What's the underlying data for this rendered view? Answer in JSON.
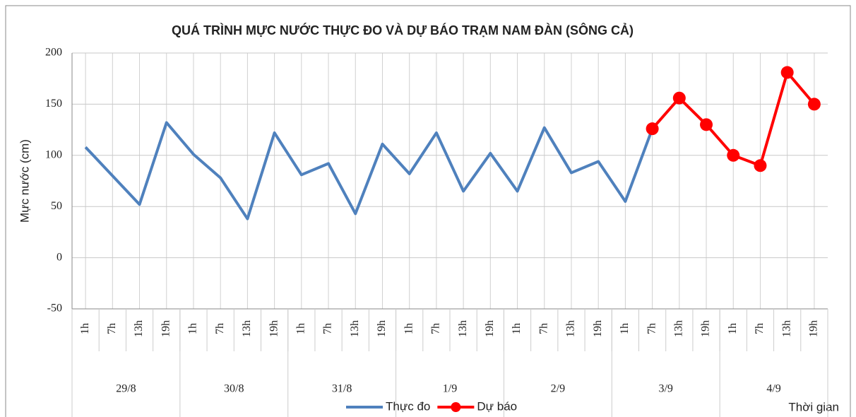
{
  "chart_data": {
    "type": "line",
    "title": "QUÁ TRÌNH MỰC NƯỚC THỰC ĐO VÀ DỰ BÁO TRẠM  NAM ĐÀN (SÔNG CẢ)",
    "y_label": "Mực nước (cm)",
    "x_label": "Thời gian",
    "categories": [
      "1h",
      "7h",
      "13h",
      "19h",
      "1h",
      "7h",
      "13h",
      "19h",
      "1h",
      "7h",
      "13h",
      "19h",
      "1h",
      "7h",
      "13h",
      "19h",
      "1h",
      "7h",
      "13h",
      "19h",
      "1h",
      "7h",
      "13h",
      "19h",
      "1h",
      "7h",
      "13h",
      "19h"
    ],
    "groups": [
      "29/8",
      "30/8",
      "31/8",
      "1/9",
      "2/9",
      "3/9",
      "4/9"
    ],
    "series": [
      {
        "name": "Thực đo",
        "color": "#4f81bd",
        "marker": false,
        "values": [
          108,
          80,
          52,
          132,
          101,
          78,
          38,
          122,
          81,
          92,
          43,
          111,
          82,
          122,
          65,
          102,
          65,
          127,
          83,
          94,
          55,
          126,
          null,
          null,
          null,
          null,
          null,
          null
        ]
      },
      {
        "name": "Dự báo",
        "color": "#ff0000",
        "marker": true,
        "values": [
          null,
          null,
          null,
          null,
          null,
          null,
          null,
          null,
          null,
          null,
          null,
          null,
          null,
          null,
          null,
          null,
          null,
          null,
          null,
          null,
          null,
          126,
          156,
          130,
          100,
          90,
          181,
          150
        ]
      }
    ],
    "ylim": [
      -50,
      200
    ],
    "yticks": [
      -50,
      0,
      50,
      100,
      150,
      200
    ],
    "grid": true,
    "legend": "bottom"
  }
}
